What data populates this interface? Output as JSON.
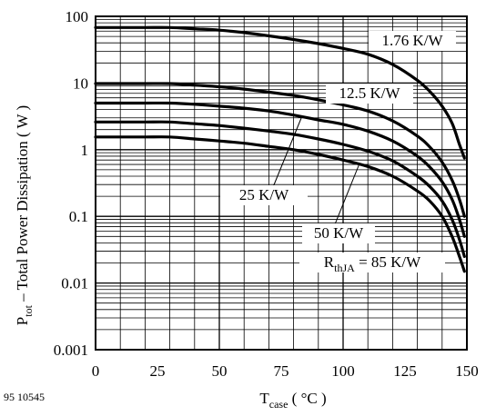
{
  "chart_data": {
    "type": "line",
    "y_scale": "log",
    "grid": "minor-log-horizontal-and-vertical",
    "xlim": [
      0,
      150
    ],
    "ylim": [
      0.001,
      100
    ],
    "x_ticks": [
      "0",
      "25",
      "50",
      "75",
      "100",
      "125",
      "150"
    ],
    "y_ticks": [
      "100",
      "10",
      "1",
      "0.1",
      "0.01",
      "0.001"
    ],
    "ylabel": {
      "main": "P",
      "sub": "tot",
      "rest": " – Total Power Dissipation ( W )"
    },
    "xlabel": {
      "main": "T",
      "sub": "case",
      "rest": " ( °C )"
    },
    "figure_number": "95 10545",
    "series": [
      {
        "name": "1.76 K/W",
        "label_parts": {
          "main": "1.76 K/W",
          "sub": "",
          "rest": ""
        },
        "x": [
          0,
          10,
          20,
          30,
          40,
          50,
          60,
          70,
          80,
          90,
          100,
          110,
          120,
          130,
          135,
          140,
          144,
          147,
          149
        ],
        "y": [
          68,
          68,
          68,
          68,
          65,
          62,
          57,
          51,
          45,
          39,
          33,
          27,
          19,
          11,
          7.5,
          4.5,
          2.5,
          1.2,
          0.75
        ]
      },
      {
        "name": "12.5 K/W",
        "label_parts": {
          "main": "12.5 K/W",
          "sub": "",
          "rest": ""
        },
        "x": [
          0,
          10,
          20,
          30,
          40,
          50,
          60,
          70,
          80,
          90,
          100,
          110,
          120,
          130,
          135,
          140,
          144,
          147,
          149
        ],
        "y": [
          9.8,
          9.8,
          9.8,
          9.8,
          9.3,
          8.8,
          8.1,
          7.3,
          6.5,
          5.6,
          4.7,
          3.8,
          2.7,
          1.6,
          1.1,
          0.65,
          0.35,
          0.18,
          0.1
        ]
      },
      {
        "name": "25 K/W",
        "label_parts": {
          "main": "25 K/W",
          "sub": "",
          "rest": ""
        },
        "x": [
          0,
          10,
          20,
          30,
          40,
          50,
          60,
          70,
          80,
          90,
          100,
          110,
          120,
          130,
          135,
          140,
          144,
          147,
          149
        ],
        "y": [
          5.0,
          5.0,
          5.0,
          5.0,
          4.8,
          4.5,
          4.2,
          3.8,
          3.3,
          2.8,
          2.4,
          1.9,
          1.35,
          0.8,
          0.55,
          0.33,
          0.18,
          0.09,
          0.05
        ]
      },
      {
        "name": "50 K/W",
        "label_parts": {
          "main": "50 K/W",
          "sub": "",
          "rest": ""
        },
        "x": [
          0,
          10,
          20,
          30,
          40,
          50,
          60,
          70,
          80,
          90,
          100,
          110,
          120,
          130,
          135,
          140,
          144,
          147,
          149
        ],
        "y": [
          2.6,
          2.6,
          2.6,
          2.6,
          2.45,
          2.3,
          2.1,
          1.9,
          1.7,
          1.45,
          1.2,
          0.95,
          0.68,
          0.4,
          0.28,
          0.17,
          0.09,
          0.045,
          0.025
        ]
      },
      {
        "name": "RthJA = 85 K/W",
        "label_parts": {
          "main": "R",
          "sub": "thJA",
          "rest": " = 85 K/W"
        },
        "x": [
          0,
          10,
          20,
          30,
          40,
          50,
          60,
          70,
          80,
          90,
          100,
          110,
          120,
          130,
          135,
          140,
          144,
          147,
          149
        ],
        "y": [
          1.55,
          1.55,
          1.55,
          1.55,
          1.45,
          1.35,
          1.25,
          1.12,
          1.0,
          0.85,
          0.7,
          0.56,
          0.4,
          0.24,
          0.17,
          0.1,
          0.05,
          0.025,
          0.015
        ]
      }
    ]
  }
}
